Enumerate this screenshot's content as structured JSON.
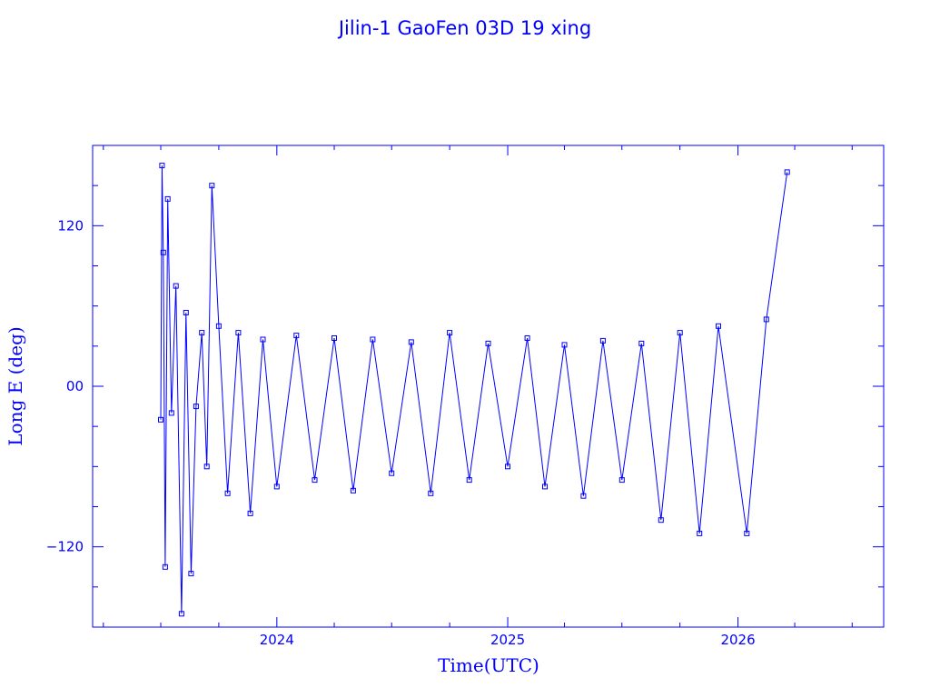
{
  "chart_data": {
    "type": "line",
    "title": "Jilin-1 GaoFen 03D 19 xing",
    "xlabel": "Time(UTC)",
    "ylabel": "Long E (deg)",
    "xlim": [
      "2023-03-15",
      "2026-08-20"
    ],
    "ylim": [
      -180,
      180
    ],
    "x_ticks": [
      {
        "label": "2024",
        "value": "2024-01-01"
      },
      {
        "label": "2025",
        "value": "2025-01-01"
      },
      {
        "label": "2026",
        "value": "2026-01-01"
      }
    ],
    "y_ticks": [
      {
        "label": "120",
        "value": 120
      },
      {
        "label": "00",
        "value": 0
      },
      {
        "label": "−120",
        "value": -120
      }
    ],
    "marker": "square",
    "grid": false,
    "color": "#0000ff",
    "series": [
      {
        "values": [
          {
            "x": "2023-07-01",
            "y": -25
          },
          {
            "x": "2023-07-03",
            "y": 165
          },
          {
            "x": "2023-07-05",
            "y": 100
          },
          {
            "x": "2023-07-08",
            "y": -135
          },
          {
            "x": "2023-07-12",
            "y": 140
          },
          {
            "x": "2023-07-18",
            "y": -20
          },
          {
            "x": "2023-07-25",
            "y": 75
          },
          {
            "x": "2023-08-03",
            "y": -170
          },
          {
            "x": "2023-08-10",
            "y": 55
          },
          {
            "x": "2023-08-18",
            "y": -140
          },
          {
            "x": "2023-08-26",
            "y": -15
          },
          {
            "x": "2023-09-04",
            "y": 40
          },
          {
            "x": "2023-09-12",
            "y": -60
          },
          {
            "x": "2023-09-20",
            "y": 150
          },
          {
            "x": "2023-10-01",
            "y": 45
          },
          {
            "x": "2023-10-15",
            "y": -80
          },
          {
            "x": "2023-11-01",
            "y": 40
          },
          {
            "x": "2023-11-20",
            "y": -95
          },
          {
            "x": "2023-12-10",
            "y": 35
          },
          {
            "x": "2024-01-01",
            "y": -75
          },
          {
            "x": "2024-02-01",
            "y": 38
          },
          {
            "x": "2024-03-01",
            "y": -70
          },
          {
            "x": "2024-04-01",
            "y": 36
          },
          {
            "x": "2024-05-01",
            "y": -78
          },
          {
            "x": "2024-06-01",
            "y": 35
          },
          {
            "x": "2024-07-01",
            "y": -65
          },
          {
            "x": "2024-08-01",
            "y": 33
          },
          {
            "x": "2024-09-01",
            "y": -80
          },
          {
            "x": "2024-10-01",
            "y": 40
          },
          {
            "x": "2024-11-01",
            "y": -70
          },
          {
            "x": "2024-12-01",
            "y": 32
          },
          {
            "x": "2025-01-01",
            "y": -60
          },
          {
            "x": "2025-02-01",
            "y": 36
          },
          {
            "x": "2025-03-01",
            "y": -75
          },
          {
            "x": "2025-04-01",
            "y": 31
          },
          {
            "x": "2025-05-01",
            "y": -82
          },
          {
            "x": "2025-06-01",
            "y": 34
          },
          {
            "x": "2025-07-01",
            "y": -70
          },
          {
            "x": "2025-08-01",
            "y": 32
          },
          {
            "x": "2025-09-01",
            "y": -100
          },
          {
            "x": "2025-10-01",
            "y": 40
          },
          {
            "x": "2025-11-01",
            "y": -110
          },
          {
            "x": "2025-12-01",
            "y": 45
          },
          {
            "x": "2026-01-15",
            "y": -110
          },
          {
            "x": "2026-02-15",
            "y": 50
          },
          {
            "x": "2026-03-20",
            "y": 160
          }
        ]
      }
    ]
  }
}
